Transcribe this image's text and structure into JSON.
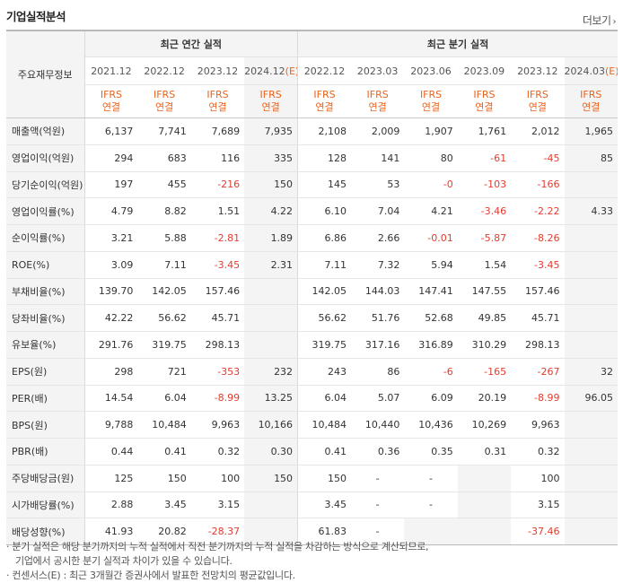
{
  "title": "기업실적분석",
  "more_label": "더보기",
  "more_arrow": "›",
  "header": {
    "row_label": "주요재무정보",
    "annual_label": "최근 연간 실적",
    "quarter_label": "최근 분기 실적",
    "periods": [
      {
        "label": "2021.12",
        "estimate": false
      },
      {
        "label": "2022.12",
        "estimate": false
      },
      {
        "label": "2023.12",
        "estimate": false
      },
      {
        "label": "2024.12",
        "estimate": true
      },
      {
        "label": "2022.12",
        "estimate": false
      },
      {
        "label": "2023.03",
        "estimate": false
      },
      {
        "label": "2023.06",
        "estimate": false
      },
      {
        "label": "2023.09",
        "estimate": false
      },
      {
        "label": "2023.12",
        "estimate": false
      },
      {
        "label": "2024.03",
        "estimate": true
      }
    ],
    "estimate_mark": "(E)",
    "ifrs_line1": "IFRS",
    "ifrs_line2": "연결"
  },
  "rows": [
    {
      "label": "매출액(억원)",
      "group_start": false,
      "values": [
        "6,137",
        "7,741",
        "7,689",
        "7,935",
        "2,108",
        "2,009",
        "1,907",
        "1,761",
        "2,012",
        "1,965"
      ]
    },
    {
      "label": "영업이익(억원)",
      "group_start": false,
      "values": [
        "294",
        "683",
        "116",
        "335",
        "128",
        "141",
        "80",
        "-61",
        "-45",
        "85"
      ]
    },
    {
      "label": "당기순이익(억원)",
      "group_start": false,
      "values": [
        "197",
        "455",
        "-216",
        "150",
        "145",
        "53",
        "-0",
        "-103",
        "-166",
        ""
      ]
    },
    {
      "label": "영업이익률(%)",
      "group_start": true,
      "values": [
        "4.79",
        "8.82",
        "1.51",
        "4.22",
        "6.10",
        "7.04",
        "4.21",
        "-3.46",
        "-2.22",
        "4.33"
      ]
    },
    {
      "label": "순이익률(%)",
      "group_start": false,
      "values": [
        "3.21",
        "5.88",
        "-2.81",
        "1.89",
        "6.86",
        "2.66",
        "-0.01",
        "-5.87",
        "-8.26",
        ""
      ]
    },
    {
      "label": "ROE(%)",
      "group_start": false,
      "values": [
        "3.09",
        "7.11",
        "-3.45",
        "2.31",
        "7.11",
        "7.32",
        "5.94",
        "1.54",
        "-3.45",
        ""
      ]
    },
    {
      "label": "부채비율(%)",
      "group_start": true,
      "values": [
        "139.70",
        "142.05",
        "157.46",
        "",
        "142.05",
        "144.03",
        "147.41",
        "147.55",
        "157.46",
        ""
      ]
    },
    {
      "label": "당좌비율(%)",
      "group_start": false,
      "values": [
        "42.22",
        "56.62",
        "45.71",
        "",
        "56.62",
        "51.76",
        "52.68",
        "49.85",
        "45.71",
        ""
      ]
    },
    {
      "label": "유보율(%)",
      "group_start": false,
      "values": [
        "291.76",
        "319.75",
        "298.13",
        "",
        "319.75",
        "317.16",
        "316.89",
        "310.29",
        "298.13",
        ""
      ]
    },
    {
      "label": "EPS(원)",
      "group_start": true,
      "values": [
        "298",
        "721",
        "-353",
        "232",
        "243",
        "86",
        "-6",
        "-165",
        "-267",
        "32"
      ]
    },
    {
      "label": "PER(배)",
      "group_start": false,
      "values": [
        "14.54",
        "6.04",
        "-8.99",
        "13.25",
        "6.04",
        "5.07",
        "6.09",
        "20.19",
        "-8.99",
        "96.05"
      ]
    },
    {
      "label": "BPS(원)",
      "group_start": false,
      "values": [
        "9,788",
        "10,484",
        "9,963",
        "10,166",
        "10,484",
        "10,440",
        "10,436",
        "10,269",
        "9,963",
        ""
      ]
    },
    {
      "label": "PBR(배)",
      "group_start": false,
      "values": [
        "0.44",
        "0.41",
        "0.32",
        "0.30",
        "0.41",
        "0.36",
        "0.35",
        "0.31",
        "0.32",
        ""
      ]
    },
    {
      "label": "주당배당금(원)",
      "group_start": true,
      "values": [
        "125",
        "150",
        "100",
        "150",
        "150",
        "-",
        "-",
        "",
        "100",
        ""
      ]
    },
    {
      "label": "시가배당률(%)",
      "group_start": false,
      "values": [
        "2.88",
        "3.45",
        "3.15",
        "",
        "3.45",
        "-",
        "-",
        "",
        "3.15",
        ""
      ]
    },
    {
      "label": "배당성향(%)",
      "group_start": false,
      "values": [
        "41.93",
        "20.82",
        "-28.37",
        "",
        "61.83",
        "-",
        "",
        "",
        "-37.46",
        ""
      ]
    }
  ],
  "notes": [
    "· 분기 실적은 해당 분기까지의 누적 실적에서 직전 분기까지의 누적 실적을 차감하는 방식으로 계산되므로,",
    "기업에서 공시한 분기 실적과 차이가 있을 수 있습니다.",
    "· 컨센서스(E) : 최근 3개월간 증권사에서 발표한 전망치의 평균값입니다."
  ],
  "colors": {
    "negative": "#e63b2e",
    "accent": "#e8641e",
    "header_bg": "#f4f4f4"
  }
}
